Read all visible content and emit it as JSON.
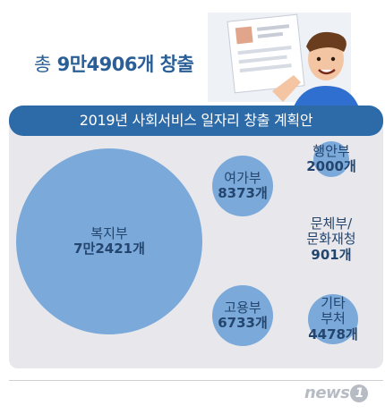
{
  "headline": {
    "prefix": "총",
    "value": "9만4906개 창출"
  },
  "chart_data": {
    "type": "bubble",
    "title": "2019년 사회서비스 일자리 창출 계획안",
    "unit": "개",
    "series": [
      {
        "name": "복지부",
        "label": "7만2421개",
        "value": 72421
      },
      {
        "name": "여가부",
        "label": "8373개",
        "value": 8373
      },
      {
        "name": "고용부",
        "label": "6733개",
        "value": 6733
      },
      {
        "name": "기타 부처",
        "label": "4478개",
        "value": 4478
      },
      {
        "name": "행안부",
        "label": "2000개",
        "value": 2000
      },
      {
        "name": "문체부/ 문화재청",
        "label": "901개",
        "value": 901
      }
    ]
  },
  "logo": {
    "text": "news",
    "badge": "1"
  },
  "colors": {
    "bubble": "#7ba9da",
    "title_bar": "#2d6aa8",
    "headline": "#2a5e96"
  }
}
